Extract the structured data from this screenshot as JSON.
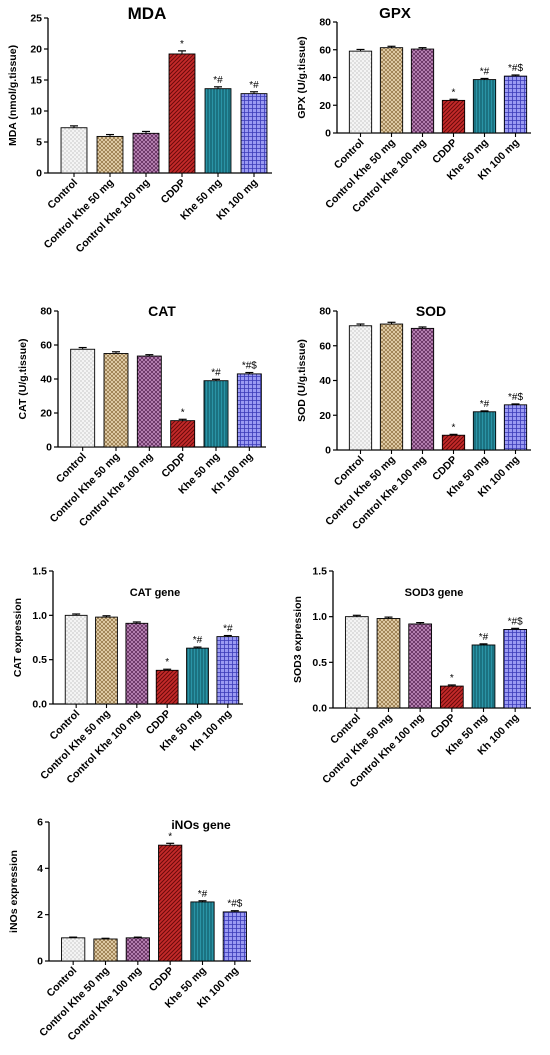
{
  "categories": [
    "Control",
    "Control Khe 50 mg",
    "Control Khe 100 mg",
    "CDDP",
    "Khe 50 mg",
    "Kh 100 mg"
  ],
  "group_colors": [
    "#f2f2f2",
    "#d4b483",
    "#9b5a96",
    "#a81818",
    "#1a7b8c",
    "#6b6be8"
  ],
  "group_patterns": [
    "dots",
    "crosshatch-beige",
    "crosshatch-purple",
    "diagonal-red",
    "vertical-teal",
    "grid-blue"
  ],
  "chart_data": [
    {
      "id": "mda",
      "type": "bar",
      "title": "MDA",
      "ylabel": "MDA (nmol/g.tissue)",
      "ylim": [
        0,
        25
      ],
      "yticks": [
        0,
        5,
        10,
        15,
        20,
        25
      ],
      "categories": [
        "Control",
        "Control Khe 50 mg",
        "Control Khe 100 mg",
        "CDDP",
        "Khe 50 mg",
        "Kh 100 mg"
      ],
      "values": [
        7.3,
        5.9,
        6.4,
        19.2,
        13.6,
        12.8
      ],
      "errors": [
        0.3,
        0.3,
        0.3,
        0.5,
        0.3,
        0.3
      ],
      "annotations": [
        "",
        "",
        "",
        "*",
        "*#",
        "*#"
      ]
    },
    {
      "id": "gpx",
      "type": "bar",
      "title": "GPX",
      "ylabel": "GPX (U/g.tissue)",
      "ylim": [
        0,
        80
      ],
      "yticks": [
        0,
        20,
        40,
        60,
        80
      ],
      "categories": [
        "Control",
        "Control Khe 50 mg",
        "Control Khe 100 mg",
        "CDDP",
        "Khe 50 mg",
        "Kh 100 mg"
      ],
      "values": [
        59,
        61.5,
        60.5,
        23.5,
        38.5,
        41
      ],
      "errors": [
        1.2,
        1.0,
        1.0,
        0.8,
        0.8,
        0.8
      ],
      "annotations": [
        "",
        "",
        "",
        "*",
        "*#",
        "*#$"
      ]
    },
    {
      "id": "cat",
      "type": "bar",
      "title": "CAT",
      "ylabel": "CAT (U/g.tissue)",
      "ylim": [
        0,
        80
      ],
      "yticks": [
        0,
        20,
        40,
        60,
        80
      ],
      "categories": [
        "Control",
        "Control Khe 50 mg",
        "Control Khe 100 mg",
        "CDDP",
        "Khe 50 mg",
        "Kh 100 mg"
      ],
      "values": [
        57.5,
        55,
        53.5,
        15.5,
        39,
        43
      ],
      "errors": [
        1.0,
        1.0,
        0.8,
        0.8,
        0.8,
        0.8
      ],
      "annotations": [
        "",
        "",
        "",
        "*",
        "*#",
        "*#$"
      ]
    },
    {
      "id": "sod",
      "type": "bar",
      "title": "SOD",
      "ylabel": "SOD (U/g.tissue)",
      "ylim": [
        0,
        80
      ],
      "yticks": [
        0,
        20,
        40,
        60,
        80
      ],
      "categories": [
        "Control",
        "Control Khe 50 mg",
        "Control Khe 100 mg",
        "CDDP",
        "Khe 50 mg",
        "Kh 100 mg"
      ],
      "values": [
        71.5,
        72.5,
        70,
        8.5,
        22,
        26
      ],
      "errors": [
        1.0,
        1.0,
        0.8,
        0.5,
        0.5,
        0.5
      ],
      "annotations": [
        "",
        "",
        "",
        "*",
        "*#",
        "*#$"
      ]
    },
    {
      "id": "cat-gene",
      "type": "bar",
      "title": "CAT gene",
      "ylabel": "CAT expression",
      "ylim": [
        0,
        1.5
      ],
      "yticks": [
        0.0,
        0.5,
        1.0,
        1.5
      ],
      "categories": [
        "Control",
        "Control Khe 50 mg",
        "Control Khe 100 mg",
        "CDDP",
        "Khe 50 mg",
        "Kh 100 mg"
      ],
      "values": [
        1.0,
        0.98,
        0.91,
        0.38,
        0.63,
        0.76
      ],
      "errors": [
        0.015,
        0.015,
        0.015,
        0.012,
        0.012,
        0.012
      ],
      "annotations": [
        "",
        "",
        "",
        "*",
        "*#",
        "*#"
      ]
    },
    {
      "id": "sod3-gene",
      "type": "bar",
      "title": "SOD3 gene",
      "ylabel": "SOD3 expression",
      "ylim": [
        0,
        1.5
      ],
      "yticks": [
        0.0,
        0.5,
        1.0,
        1.5
      ],
      "categories": [
        "Control",
        "Control Khe 50 mg",
        "Control Khe 100 mg",
        "CDDP",
        "Khe 50 mg",
        "Kh 100 mg"
      ],
      "values": [
        1.0,
        0.98,
        0.92,
        0.24,
        0.69,
        0.86
      ],
      "errors": [
        0.015,
        0.015,
        0.015,
        0.012,
        0.012,
        0.012
      ],
      "annotations": [
        "",
        "",
        "",
        "*",
        "*#",
        "*#$"
      ]
    },
    {
      "id": "inos-gene",
      "type": "bar",
      "title": "iNOs gene",
      "ylabel": "iNOs expression",
      "ylim": [
        0,
        6
      ],
      "yticks": [
        0,
        2,
        4,
        6
      ],
      "categories": [
        "Control",
        "Control Khe 50 mg",
        "Control Khe 100 mg",
        "CDDP",
        "Khe 50 mg",
        "Kh 100 mg"
      ],
      "values": [
        1.0,
        0.95,
        1.0,
        5.0,
        2.55,
        2.12
      ],
      "errors": [
        0.03,
        0.03,
        0.03,
        0.08,
        0.05,
        0.05
      ],
      "annotations": [
        "",
        "",
        "",
        "*",
        "*#",
        "*#$"
      ]
    }
  ]
}
